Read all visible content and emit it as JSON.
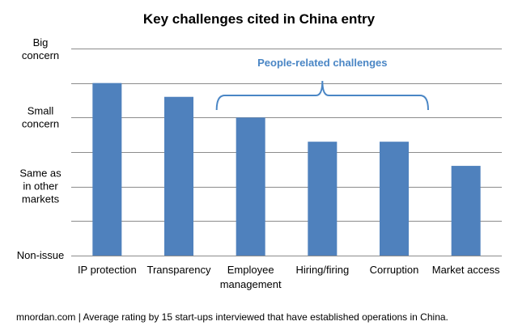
{
  "chart_data": {
    "type": "bar",
    "title": "Key challenges cited in China entry",
    "categories": [
      [
        "IP protection"
      ],
      [
        "Transparency"
      ],
      [
        "Employee",
        "management"
      ],
      [
        "Hiring/firing"
      ],
      [
        "Corruption"
      ],
      [
        "Market access"
      ]
    ],
    "values": [
      2.5,
      2.3,
      2.0,
      1.65,
      1.65,
      1.3
    ],
    "ylim": [
      0,
      3
    ],
    "y_ticks": [
      {
        "value": 3,
        "label": [
          "Big",
          "concern"
        ]
      },
      {
        "value": 2,
        "label": [
          "Small",
          "concern"
        ]
      },
      {
        "value": 1,
        "label": [
          "Same as",
          "in other",
          "markets"
        ]
      },
      {
        "value": 0,
        "label": [
          "Non-issue"
        ]
      }
    ],
    "gridline_step": 0.5,
    "grid": true,
    "bar_color": "#4f81bd",
    "annotation": {
      "text": "People-related challenges",
      "color": "#4a86c5",
      "spans_categories": [
        2,
        4
      ]
    },
    "footer": "mnordan.com | Average rating by 15 start-ups interviewed that have established operations in China."
  }
}
